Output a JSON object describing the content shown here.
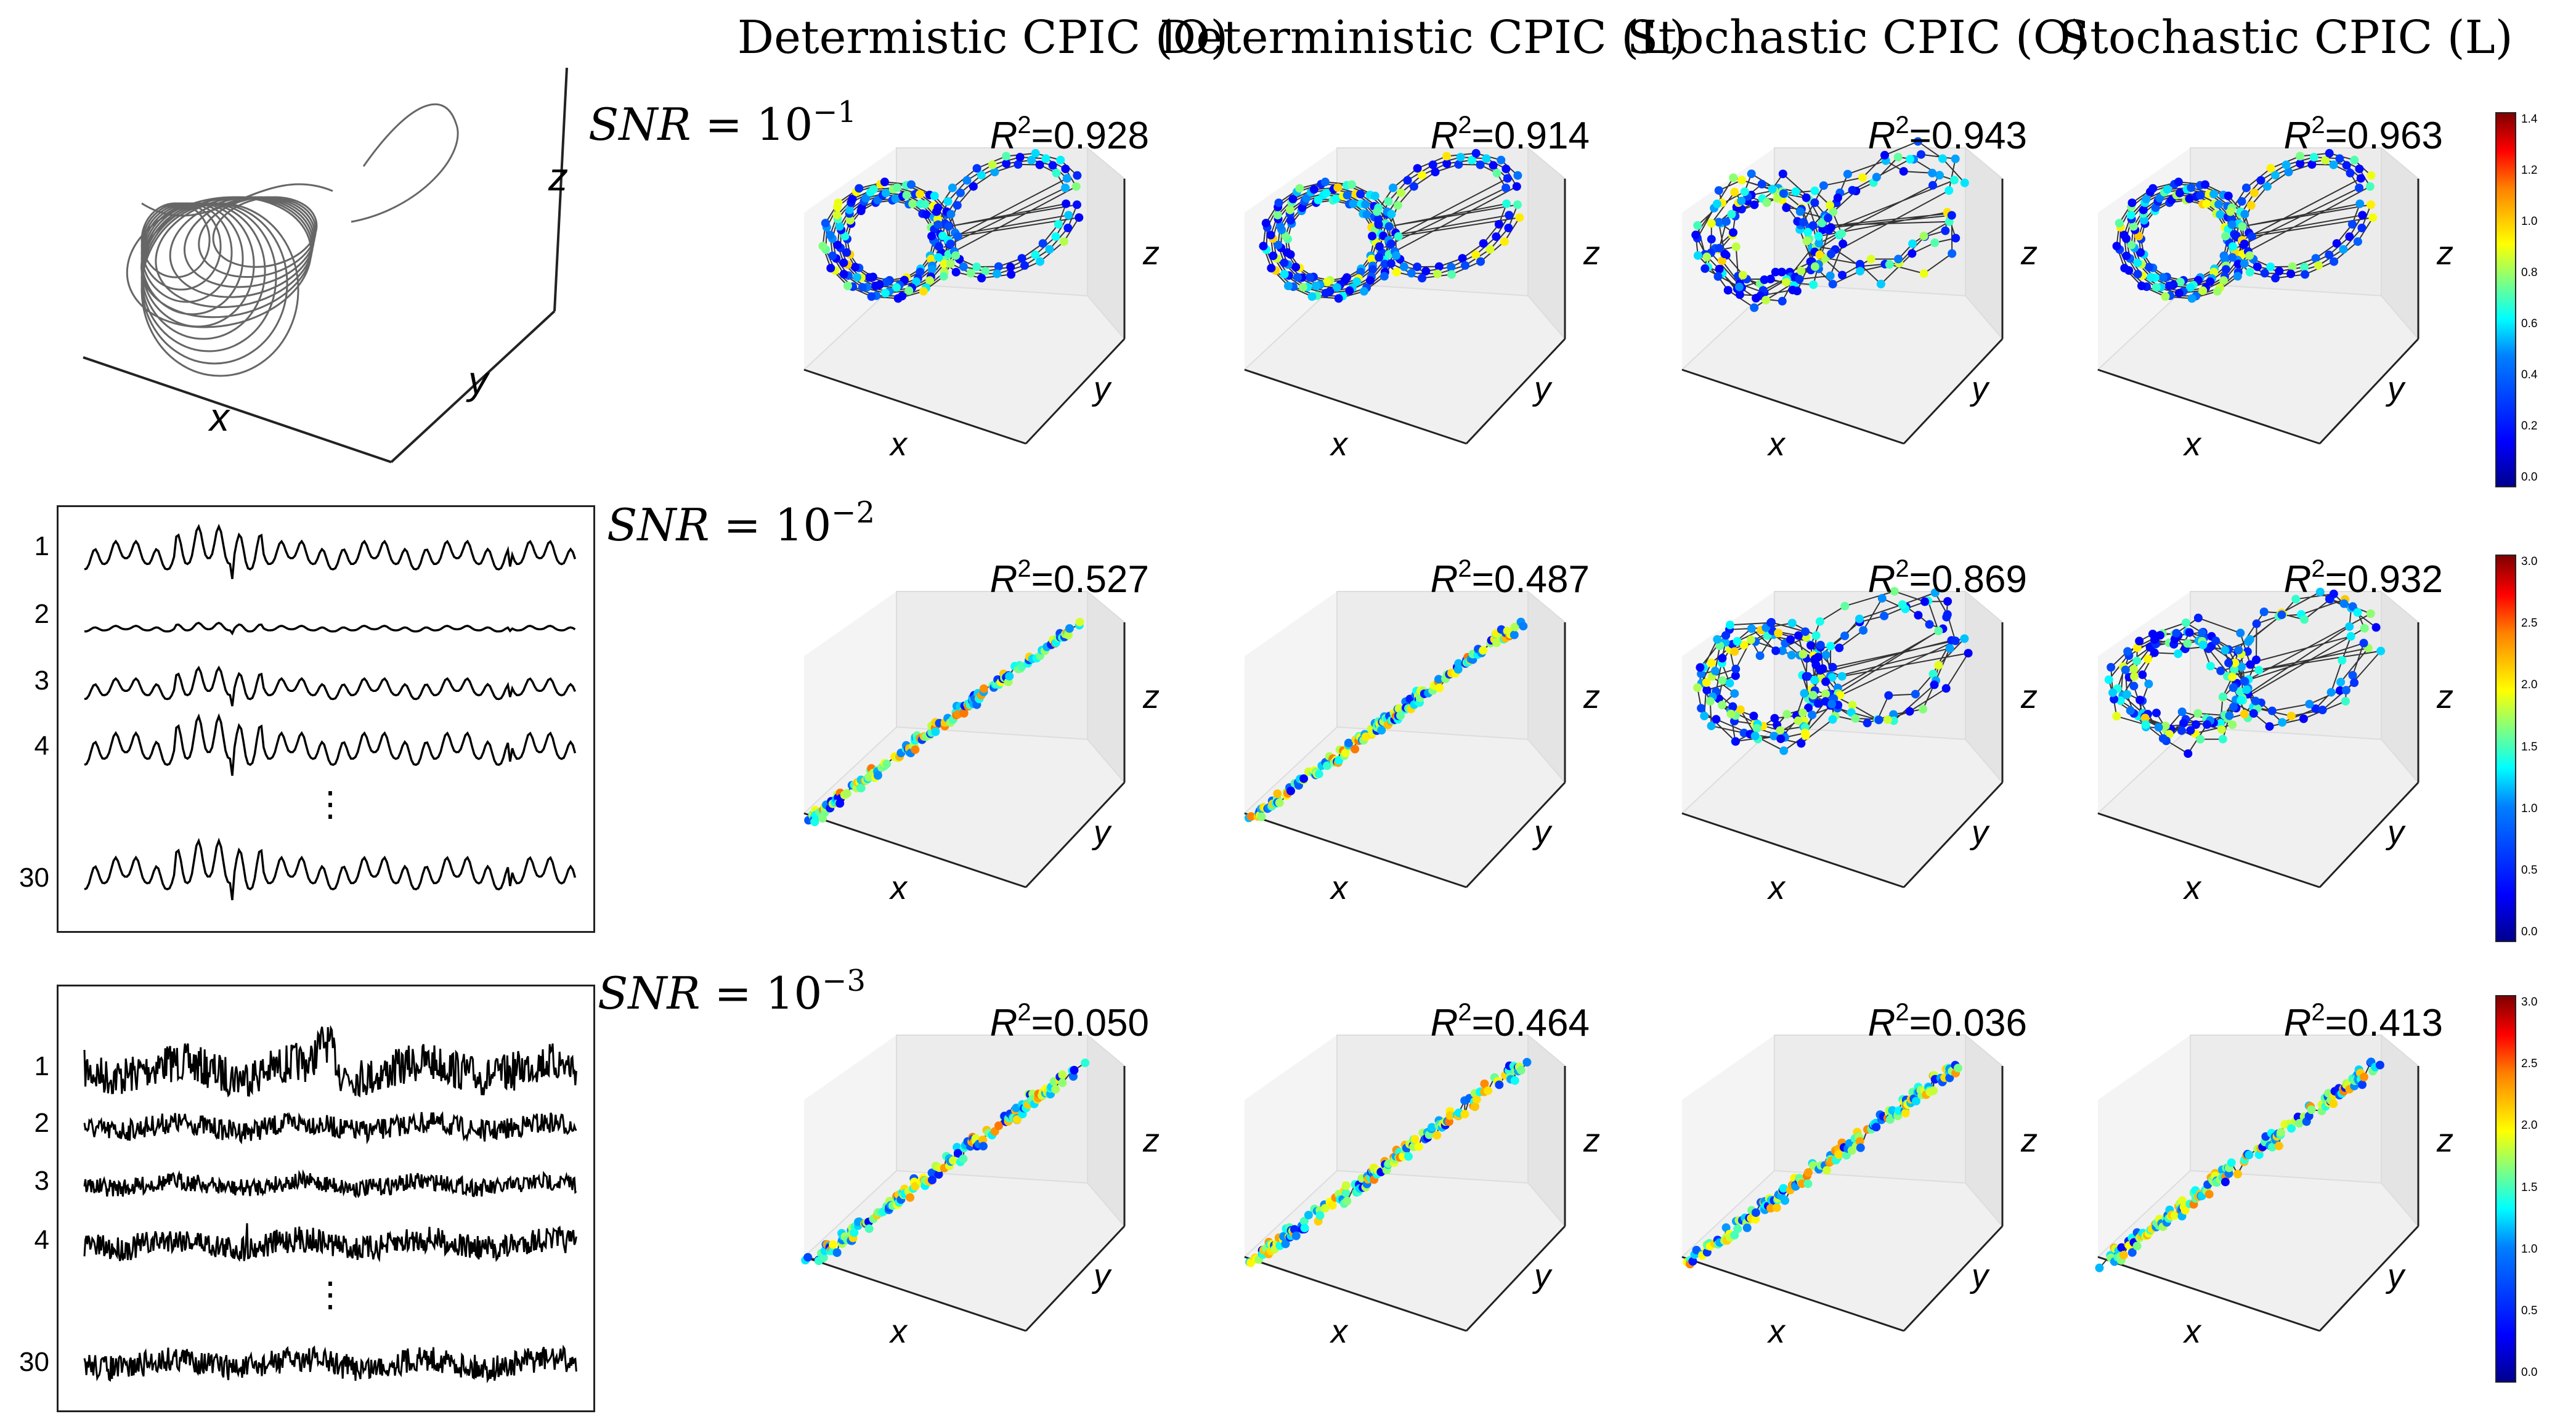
{
  "columns": [
    "Determistic CPIC (O)",
    "Deterministic CPIC (L)",
    "Stochastic CPIC (O)",
    "Stochastic CPIC (L)"
  ],
  "rows": [
    {
      "snr_label": "SNR",
      "snr_base": "= 10",
      "snr_exp": "−1",
      "r2": [
        "=0.928",
        "=0.914",
        "=0.943",
        "=0.963"
      ],
      "colorbar_ticks": [
        "1.4",
        "1.2",
        "1.0",
        "0.8",
        "0.6",
        "0.4",
        "0.2",
        "0.0"
      ]
    },
    {
      "snr_label": "SNR",
      "snr_base": "= 10",
      "snr_exp": "−2",
      "r2": [
        "=0.527",
        "=0.487",
        "=0.869",
        "=0.932"
      ],
      "colorbar_ticks": [
        "3.0",
        "2.5",
        "2.0",
        "1.5",
        "1.0",
        "0.5",
        "0.0"
      ]
    },
    {
      "snr_label": "SNR",
      "snr_base": "= 10",
      "snr_exp": "−3",
      "r2": [
        "=0.050",
        "=0.464",
        "=0.036",
        "=0.413"
      ],
      "colorbar_ticks": [
        "3.0",
        "2.5",
        "2.0",
        "1.5",
        "1.0",
        "0.5",
        "0.0"
      ]
    }
  ],
  "r2_symbol": "R",
  "r2_exp": "2",
  "axis_labels": {
    "x": "x",
    "y": "y",
    "z": "z"
  },
  "trace_labels": [
    "1",
    "2",
    "3",
    "4",
    "⋮",
    "30"
  ],
  "panel_kinds": [
    [
      "attractor",
      "attractor",
      "attractor-noisy",
      "attractor"
    ],
    [
      "line",
      "line",
      "attractor-noisy",
      "attractor-noisy"
    ],
    [
      "line",
      "line",
      "line",
      "line"
    ]
  ],
  "colors": {
    "trajectory": "#333333",
    "axis": "#222222"
  }
}
